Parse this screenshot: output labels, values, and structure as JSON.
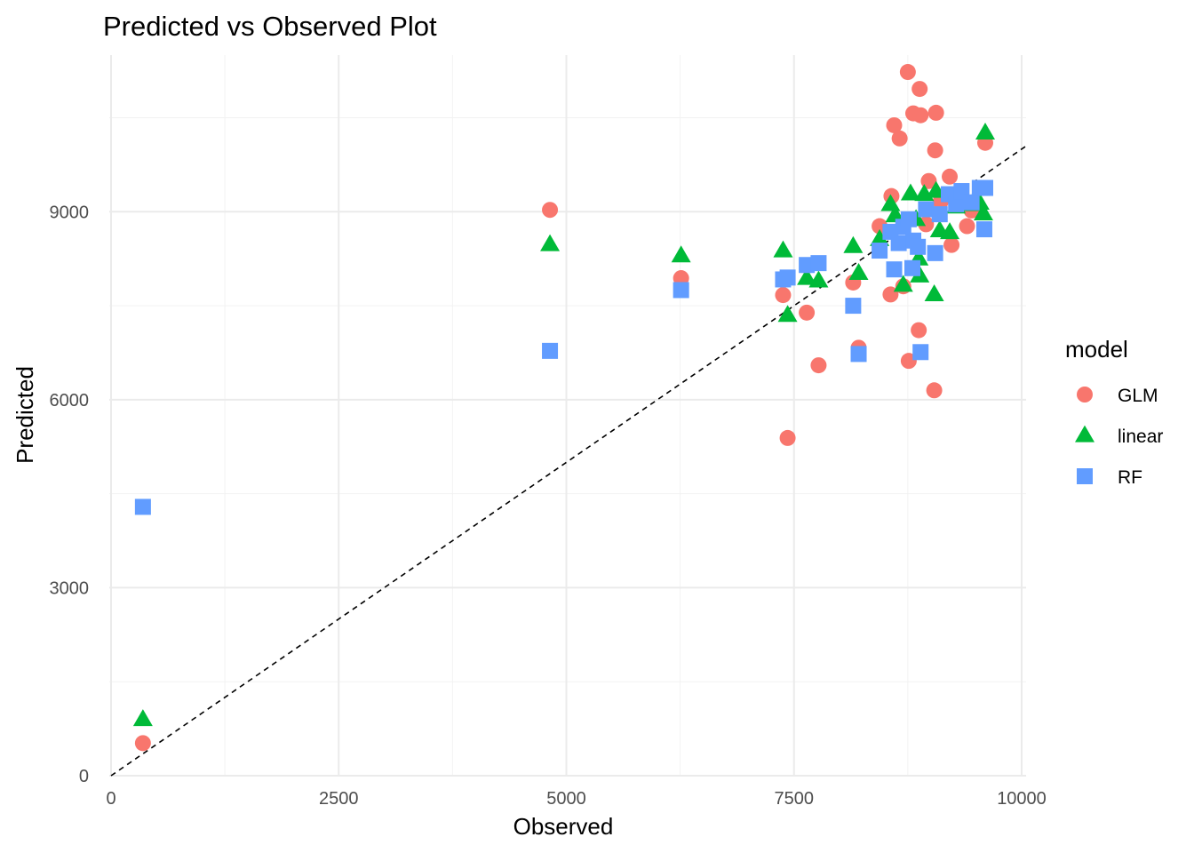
{
  "chart_data": {
    "type": "scatter",
    "title": "Predicted vs Observed Plot",
    "xlabel": "Observed",
    "ylabel": "Predicted",
    "xlim": [
      0,
      10000
    ],
    "ylim": [
      0,
      11500
    ],
    "x_ticks": [
      0,
      2500,
      5000,
      7500,
      10000
    ],
    "x_tick_labels": [
      "0",
      "2500",
      "5000",
      "7500",
      "10000"
    ],
    "y_ticks": [
      0,
      3000,
      6000,
      9000
    ],
    "y_tick_labels": [
      "0",
      "3000",
      "6000",
      "9000"
    ],
    "grid": true,
    "reference_line": {
      "style": "dashed",
      "slope": 1,
      "intercept": 0,
      "color": "#000000"
    },
    "legend": {
      "title": "model",
      "position": "right"
    },
    "series": [
      {
        "name": "GLM",
        "shape": "circle",
        "color": "#F8766D",
        "points": [
          [
            350,
            520
          ],
          [
            4820,
            9030
          ],
          [
            6260,
            7940
          ],
          [
            7380,
            7670
          ],
          [
            7430,
            5390
          ],
          [
            7640,
            7390
          ],
          [
            7770,
            6550
          ],
          [
            8150,
            7870
          ],
          [
            8210,
            6830
          ],
          [
            8440,
            8770
          ],
          [
            8560,
            7680
          ],
          [
            8570,
            9250
          ],
          [
            8600,
            10380
          ],
          [
            8660,
            10170
          ],
          [
            8700,
            7810
          ],
          [
            8750,
            11230
          ],
          [
            8760,
            6620
          ],
          [
            8810,
            10570
          ],
          [
            8870,
            7110
          ],
          [
            8880,
            10960
          ],
          [
            8890,
            10540
          ],
          [
            8950,
            8800
          ],
          [
            8980,
            9490
          ],
          [
            9040,
            6150
          ],
          [
            9050,
            9980
          ],
          [
            9060,
            10580
          ],
          [
            9110,
            9160
          ],
          [
            9210,
            9560
          ],
          [
            9230,
            8470
          ],
          [
            9400,
            8770
          ],
          [
            9450,
            9020
          ],
          [
            9600,
            10100
          ]
        ]
      },
      {
        "name": "linear",
        "shape": "triangle",
        "color": "#00BA38",
        "points": [
          [
            350,
            900
          ],
          [
            4820,
            8480
          ],
          [
            6260,
            8300
          ],
          [
            7380,
            8380
          ],
          [
            7430,
            7350
          ],
          [
            7640,
            7940
          ],
          [
            7770,
            7900
          ],
          [
            8150,
            8450
          ],
          [
            8210,
            8020
          ],
          [
            8440,
            8560
          ],
          [
            8560,
            9120
          ],
          [
            8610,
            8940
          ],
          [
            8700,
            7830
          ],
          [
            8780,
            9290
          ],
          [
            8840,
            8880
          ],
          [
            8870,
            8250
          ],
          [
            8880,
            7980
          ],
          [
            8930,
            9280
          ],
          [
            9040,
            7680
          ],
          [
            9060,
            9330
          ],
          [
            9100,
            8700
          ],
          [
            9210,
            8670
          ],
          [
            9280,
            9080
          ],
          [
            9380,
            9210
          ],
          [
            9450,
            9120
          ],
          [
            9540,
            9140
          ],
          [
            9580,
            8970
          ],
          [
            9600,
            10260
          ]
        ]
      },
      {
        "name": "RF",
        "shape": "square",
        "color": "#619CFF",
        "points": [
          [
            350,
            4290
          ],
          [
            4820,
            6780
          ],
          [
            6260,
            7750
          ],
          [
            7380,
            7920
          ],
          [
            7430,
            7950
          ],
          [
            7640,
            8150
          ],
          [
            7770,
            8180
          ],
          [
            8150,
            7500
          ],
          [
            8210,
            6730
          ],
          [
            8440,
            8380
          ],
          [
            8560,
            8680
          ],
          [
            8600,
            8080
          ],
          [
            8650,
            8500
          ],
          [
            8700,
            8760
          ],
          [
            8760,
            8880
          ],
          [
            8800,
            8100
          ],
          [
            8810,
            8540
          ],
          [
            8860,
            8440
          ],
          [
            8890,
            6760
          ],
          [
            8950,
            9040
          ],
          [
            9050,
            8340
          ],
          [
            9100,
            8960
          ],
          [
            9200,
            9280
          ],
          [
            9280,
            9120
          ],
          [
            9340,
            9330
          ],
          [
            9450,
            9150
          ],
          [
            9540,
            9380
          ],
          [
            9590,
            8720
          ],
          [
            9600,
            9380
          ]
        ]
      }
    ]
  }
}
